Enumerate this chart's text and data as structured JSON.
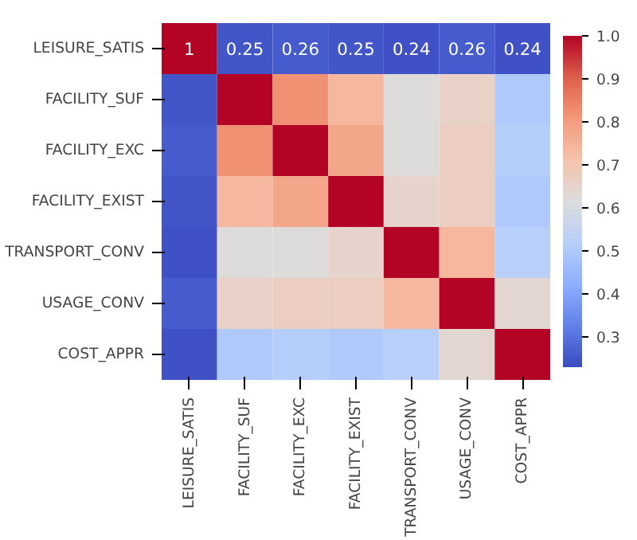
{
  "chart_data": {
    "type": "heatmap",
    "categories": [
      "LEISURE_SATIS",
      "FACILITY_SUF",
      "FACILITY_EXC",
      "FACILITY_EXIST",
      "TRANSPORT_CONV",
      "USAGE_CONV",
      "COST_APPR"
    ],
    "y_categories": [
      "LEISURE_SATIS",
      "FACILITY_SUF",
      "FACILITY_EXC",
      "FACILITY_EXIST",
      "TRANSPORT_CONV",
      "USAGE_CONV",
      "COST_APPR"
    ],
    "cells": [
      [
        1,
        0.25,
        0.26,
        0.25,
        0.24,
        0.26,
        0.24
      ],
      [
        0.25,
        1,
        0.82,
        0.74,
        0.62,
        0.66,
        0.5
      ],
      [
        0.26,
        0.82,
        1,
        0.78,
        0.62,
        0.67,
        0.51
      ],
      [
        0.25,
        0.74,
        0.78,
        1,
        0.65,
        0.67,
        0.5
      ],
      [
        0.24,
        0.62,
        0.62,
        0.65,
        1,
        0.74,
        0.52
      ],
      [
        0.26,
        0.66,
        0.67,
        0.67,
        0.74,
        1,
        0.64
      ],
      [
        0.24,
        0.5,
        0.51,
        0.5,
        0.52,
        0.64,
        1
      ]
    ],
    "cell_labels": [
      [
        "1",
        "0.25",
        "0.26",
        "0.25",
        "0.24",
        "0.26",
        "0.24"
      ],
      [
        null,
        null,
        null,
        null,
        null,
        null,
        null
      ],
      [
        null,
        null,
        null,
        null,
        null,
        null,
        null
      ],
      [
        null,
        null,
        null,
        null,
        null,
        null,
        null
      ],
      [
        null,
        null,
        null,
        null,
        null,
        null,
        null
      ],
      [
        null,
        null,
        null,
        null,
        null,
        null,
        null
      ],
      [
        null,
        null,
        null,
        null,
        null,
        null,
        null
      ]
    ],
    "clim": [
      0.23,
      1.0
    ],
    "cticks": [
      0.3,
      0.4,
      0.5,
      0.6,
      0.7,
      0.8,
      0.9,
      {
        "value": 1,
        "label": "1.0"
      }
    ]
  }
}
